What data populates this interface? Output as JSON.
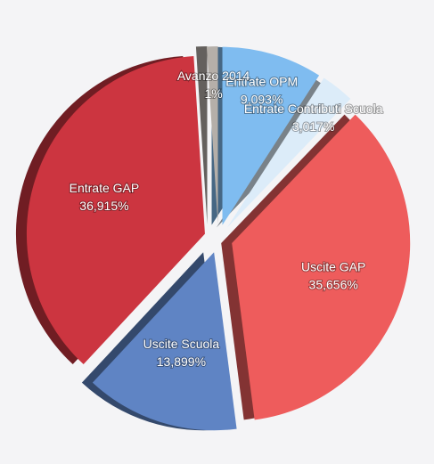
{
  "chart_data": {
    "type": "pie",
    "categories": [
      "Entrate OPM",
      "Entrate Contributi Scuola",
      "Uscite GAP",
      "Uscite Scuola",
      "Entrate GAP",
      "Avanzo 2014"
    ],
    "values": [
      9.093,
      3.017,
      35.656,
      13.899,
      36.915,
      1
    ],
    "value_labels": [
      "9,093%",
      "3,017%",
      "35,656%",
      "13,899%",
      "36,915%",
      "1%"
    ],
    "colors": [
      "#7fbcf0",
      "#dcecf9",
      "#ee5c5c",
      "#5f84c4",
      "#cc3540",
      "#b5afa9"
    ]
  }
}
